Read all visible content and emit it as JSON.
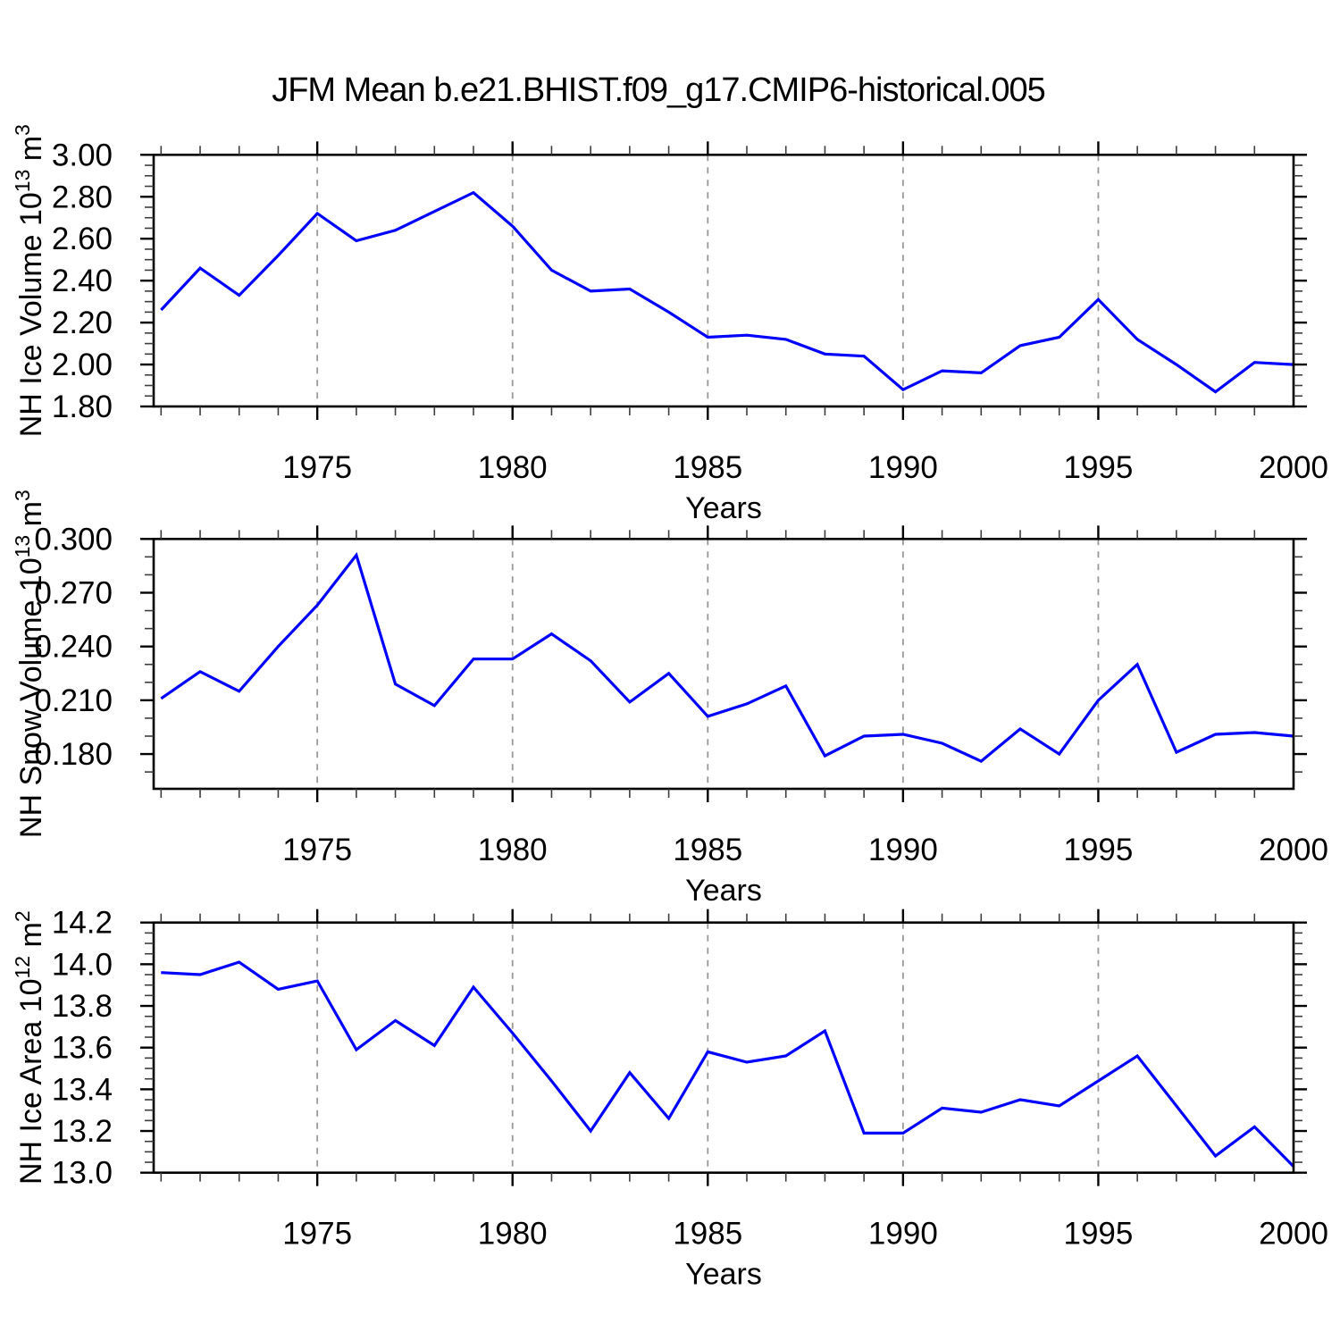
{
  "title": "JFM Mean b.e21.BHIST.f09_g17.CMIP6-historical.005",
  "chart_data": [
    {
      "type": "line",
      "name": "nh-ice-volume",
      "title": "",
      "xlabel": "Years",
      "ylabel": "NH Ice Volume 10^13 m^3",
      "ylabel_segments": [
        {
          "text": "NH Ice Volume 10",
          "sup": false
        },
        {
          "text": "13",
          "sup": true
        },
        {
          "text": " m",
          "sup": false
        },
        {
          "text": "3",
          "sup": true
        }
      ],
      "line_color": "#0000ff",
      "grid_color": "#999999",
      "xlim": [
        1970.81,
        2000
      ],
      "ylim": [
        1.8,
        3.0
      ],
      "x_ticks": [
        1975,
        1980,
        1985,
        1990,
        1995,
        2000
      ],
      "x_tick_labels": [
        "1975",
        "1980",
        "1985",
        "1990",
        "1995",
        "2000"
      ],
      "grid_x": [
        1975,
        1980,
        1985,
        1990,
        1995
      ],
      "y_ticks": [
        1.8,
        2.0,
        2.2,
        2.4,
        2.6,
        2.8,
        3.0
      ],
      "y_tick_labels": [
        "1.80",
        "2.00",
        "2.20",
        "2.40",
        "2.60",
        "2.80",
        "3.00"
      ],
      "x": [
        1971,
        1972,
        1973,
        1974,
        1975,
        1976,
        1977,
        1978,
        1979,
        1980,
        1981,
        1982,
        1983,
        1984,
        1985,
        1986,
        1987,
        1988,
        1989,
        1990,
        1991,
        1992,
        1993,
        1994,
        1995,
        1996,
        1997,
        1998,
        1999,
        2000
      ],
      "values": [
        2.26,
        2.46,
        2.33,
        2.52,
        2.72,
        2.59,
        2.64,
        2.73,
        2.82,
        2.66,
        2.45,
        2.35,
        2.36,
        2.25,
        2.13,
        2.14,
        2.12,
        2.05,
        2.04,
        1.88,
        1.97,
        1.96,
        2.09,
        2.13,
        2.31,
        2.12,
        2.0,
        1.87,
        2.01,
        2.0
      ]
    },
    {
      "type": "line",
      "name": "nh-snow-volume",
      "title": "",
      "xlabel": "Years",
      "ylabel": "NH Snow Volume 10^13 m^3",
      "ylabel_segments": [
        {
          "text": "NH Snow Volume 10",
          "sup": false
        },
        {
          "text": "13",
          "sup": true
        },
        {
          "text": " m",
          "sup": false
        },
        {
          "text": "3",
          "sup": true
        }
      ],
      "line_color": "#0000ff",
      "grid_color": "#999999",
      "xlim": [
        1970.81,
        2000
      ],
      "ylim": [
        0.1606,
        0.3
      ],
      "x_ticks": [
        1975,
        1980,
        1985,
        1990,
        1995,
        2000
      ],
      "x_tick_labels": [
        "1975",
        "1980",
        "1985",
        "1990",
        "1995",
        "2000"
      ],
      "grid_x": [
        1975,
        1980,
        1985,
        1990,
        1995
      ],
      "y_ticks": [
        0.18,
        0.21,
        0.24,
        0.27,
        0.3
      ],
      "y_tick_labels": [
        "0.180",
        "0.210",
        "0.240",
        "0.270",
        "0.300"
      ],
      "x": [
        1971,
        1972,
        1973,
        1974,
        1975,
        1976,
        1977,
        1978,
        1979,
        1980,
        1981,
        1982,
        1983,
        1984,
        1985,
        1986,
        1987,
        1988,
        1989,
        1990,
        1991,
        1992,
        1993,
        1994,
        1995,
        1996,
        1997,
        1998,
        1999,
        2000
      ],
      "values": [
        0.211,
        0.226,
        0.215,
        0.24,
        0.263,
        0.291,
        0.219,
        0.207,
        0.233,
        0.233,
        0.247,
        0.232,
        0.209,
        0.225,
        0.201,
        0.208,
        0.218,
        0.179,
        0.19,
        0.191,
        0.186,
        0.176,
        0.194,
        0.18,
        0.21,
        0.23,
        0.181,
        0.191,
        0.192,
        0.19
      ]
    },
    {
      "type": "line",
      "name": "nh-ice-area",
      "title": "",
      "xlabel": "Years",
      "ylabel": "NH Ice Area 10^12 m^2",
      "ylabel_segments": [
        {
          "text": "NH Ice Area 10",
          "sup": false
        },
        {
          "text": "12",
          "sup": true
        },
        {
          "text": " m",
          "sup": false
        },
        {
          "text": "2",
          "sup": true
        }
      ],
      "line_color": "#0000ff",
      "grid_color": "#999999",
      "xlim": [
        1970.81,
        2000
      ],
      "ylim": [
        13.0,
        14.2
      ],
      "x_ticks": [
        1975,
        1980,
        1985,
        1990,
        1995,
        2000
      ],
      "x_tick_labels": [
        "1975",
        "1980",
        "1985",
        "1990",
        "1995",
        "2000"
      ],
      "grid_x": [
        1975,
        1980,
        1985,
        1990,
        1995
      ],
      "y_ticks": [
        13.0,
        13.2,
        13.4,
        13.6,
        13.8,
        14.0,
        14.2
      ],
      "y_tick_labels": [
        "13.0",
        "13.2",
        "13.4",
        "13.6",
        "13.8",
        "14.0",
        "14.2"
      ],
      "x": [
        1971,
        1972,
        1973,
        1974,
        1975,
        1976,
        1977,
        1978,
        1979,
        1980,
        1981,
        1982,
        1983,
        1984,
        1985,
        1986,
        1987,
        1988,
        1989,
        1990,
        1991,
        1992,
        1993,
        1994,
        1995,
        1996,
        1997,
        1998,
        1999,
        2000
      ],
      "values": [
        13.96,
        13.95,
        14.01,
        13.88,
        13.92,
        13.59,
        13.73,
        13.61,
        13.89,
        13.67,
        13.44,
        13.2,
        13.48,
        13.26,
        13.58,
        13.53,
        13.56,
        13.68,
        13.19,
        13.19,
        13.31,
        13.29,
        13.35,
        13.32,
        13.44,
        13.56,
        13.32,
        13.08,
        13.22,
        13.03
      ]
    }
  ]
}
